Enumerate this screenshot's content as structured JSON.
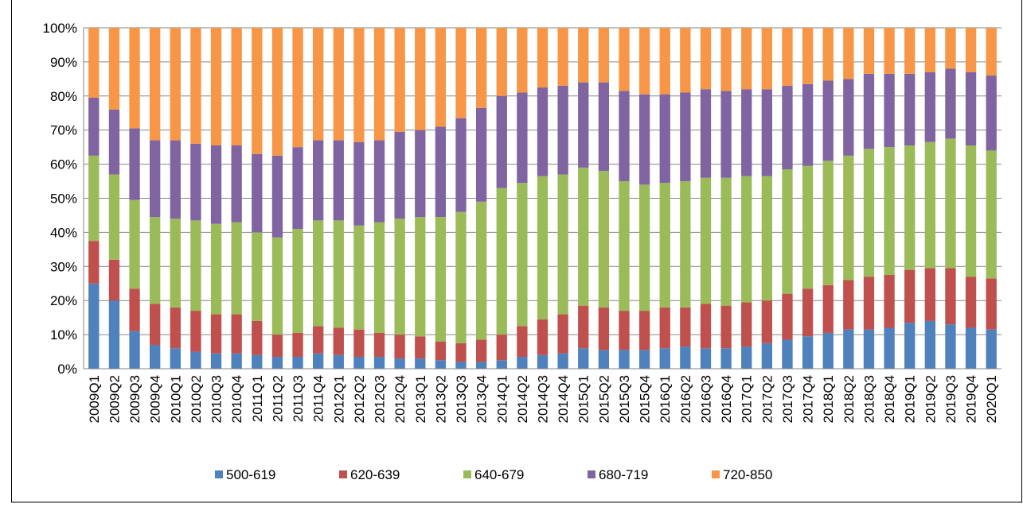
{
  "chart_data": {
    "type": "bar",
    "stacked": true,
    "grid": true,
    "legend": "bottom",
    "categories": [
      "2009Q1",
      "2009Q2",
      "2009Q3",
      "2009Q4",
      "2010Q1",
      "2010Q2",
      "2010Q3",
      "2010Q4",
      "2011Q1",
      "2011Q2",
      "2011Q3",
      "2011Q4",
      "2012Q1",
      "2012Q2",
      "2012Q3",
      "2012Q4",
      "2013Q1",
      "2013Q2",
      "2013Q3",
      "2013Q4",
      "2014Q1",
      "2014Q2",
      "2014Q3",
      "2014Q4",
      "2015Q1",
      "2015Q2",
      "2015Q3",
      "2015Q4",
      "2016Q1",
      "2016Q2",
      "2016Q3",
      "2016Q4",
      "2017Q1",
      "2017Q2",
      "2017Q3",
      "2017Q4",
      "2018Q1",
      "2018Q2",
      "2018Q3",
      "2018Q4",
      "2019Q1",
      "2019Q2",
      "2019Q3",
      "2019Q4",
      "2020Q1"
    ],
    "series": [
      {
        "name": "500-619",
        "color": "#4f81bd",
        "values": [
          25,
          20,
          11,
          7,
          6,
          5,
          4.5,
          4.5,
          4,
          3.5,
          3.5,
          4.5,
          4,
          3.5,
          3.5,
          3,
          3,
          2.5,
          2,
          2,
          2.5,
          3.5,
          4,
          4.5,
          6,
          5.5,
          5.5,
          5.5,
          6,
          6.5,
          6,
          6,
          6.5,
          7.5,
          8.5,
          9.5,
          10.5,
          11.5,
          11.5,
          12,
          13.5,
          14,
          13,
          12,
          11.5
        ]
      },
      {
        "name": "620-639",
        "color": "#c0504d",
        "values": [
          12.5,
          12,
          12.5,
          12,
          12,
          12,
          11.5,
          11.5,
          10,
          6.5,
          7,
          8,
          8,
          8,
          7,
          7,
          6.5,
          5.5,
          5.5,
          6.5,
          7.5,
          9,
          10.5,
          11.5,
          12.5,
          12.5,
          11.5,
          11.5,
          12,
          11.5,
          13,
          12.5,
          13,
          12.5,
          13.5,
          14,
          14,
          14.5,
          15.5,
          15.5,
          15.5,
          15.5,
          16.5,
          15,
          15
        ]
      },
      {
        "name": "640-679",
        "color": "#9bbb59",
        "values": [
          25,
          25,
          26,
          25.5,
          26,
          26.5,
          26.5,
          27,
          26,
          28.5,
          30.5,
          31,
          31.5,
          30.5,
          32.5,
          34,
          35,
          36.5,
          38.5,
          40.5,
          43,
          42,
          42,
          41,
          40.5,
          40,
          38,
          37,
          36.5,
          37,
          37,
          37.5,
          37,
          36.5,
          36.5,
          36,
          36.5,
          36.5,
          37.5,
          37.5,
          36.5,
          37,
          38,
          38.5,
          37.5
        ]
      },
      {
        "name": "680-719",
        "color": "#8064a2",
        "values": [
          17,
          19,
          21,
          22.5,
          23,
          22.5,
          23,
          22.5,
          23,
          24,
          24,
          23.5,
          23.5,
          24.5,
          24,
          25.5,
          25.5,
          26.5,
          27.5,
          27.5,
          27,
          26.5,
          26,
          26,
          25,
          26,
          26.5,
          26.5,
          26,
          26,
          26,
          25.5,
          25.5,
          25.5,
          24.5,
          24,
          23.5,
          22.5,
          22,
          21.5,
          21,
          20.5,
          20.5,
          21.5,
          22
        ]
      },
      {
        "name": "720-850",
        "color": "#f79646",
        "values": [
          20.5,
          24,
          29.5,
          33,
          33,
          34,
          34.5,
          34.5,
          37,
          37.5,
          35,
          33,
          33,
          33.5,
          33,
          30.5,
          30,
          29,
          26.5,
          23.5,
          20,
          19,
          17.5,
          17,
          16,
          16,
          18.5,
          19.5,
          19.5,
          19,
          18,
          18.5,
          18,
          18,
          17,
          16.5,
          15.5,
          15,
          13.5,
          13.5,
          13.5,
          13,
          12,
          13,
          14
        ]
      }
    ],
    "ylim": [
      0,
      100
    ],
    "yticks": [
      {
        "value": 0,
        "label": "0%"
      },
      {
        "value": 10,
        "label": "10%"
      },
      {
        "value": 20,
        "label": "20%"
      },
      {
        "value": 30,
        "label": "30%"
      },
      {
        "value": 40,
        "label": "40%"
      },
      {
        "value": 50,
        "label": "50%"
      },
      {
        "value": 60,
        "label": "60%"
      },
      {
        "value": 70,
        "label": "70%"
      },
      {
        "value": 80,
        "label": "80%"
      },
      {
        "value": 90,
        "label": "90%"
      },
      {
        "value": 100,
        "label": "100%"
      }
    ]
  }
}
